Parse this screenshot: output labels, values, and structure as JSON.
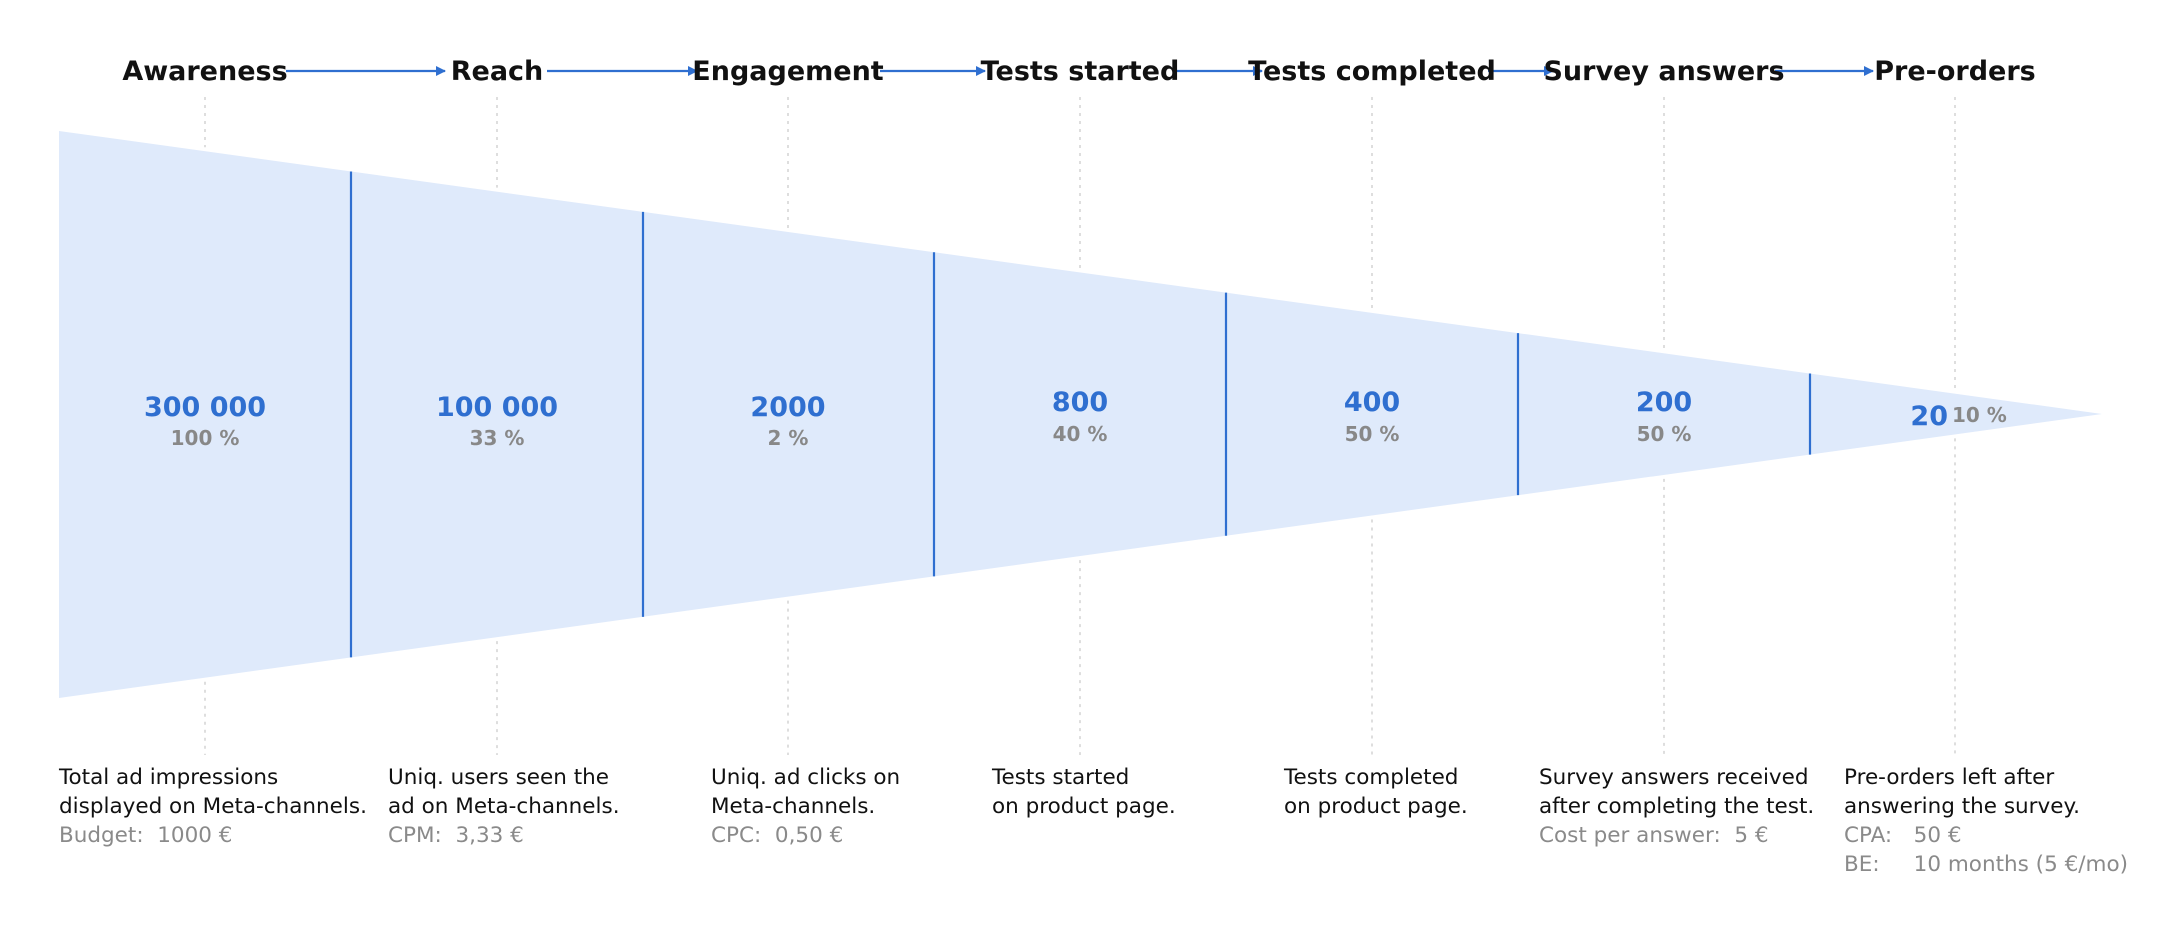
{
  "colors": {
    "accent": "#2f6fd0",
    "funnel_fill": "#dfeafb",
    "text": "#111111",
    "muted": "#8a8a8a",
    "guide": "#cfcfcf"
  },
  "stages": [
    {
      "title": "Awareness",
      "value": "300 000",
      "percent": "100 %"
    },
    {
      "title": "Reach",
      "value": "100 000",
      "percent": "33 %"
    },
    {
      "title": "Engagement",
      "value": "2000",
      "percent": "2 %"
    },
    {
      "title": "Tests started",
      "value": "800",
      "percent": "40 %"
    },
    {
      "title": "Tests completed",
      "value": "400",
      "percent": "50 %"
    },
    {
      "title": "Survey answers",
      "value": "200",
      "percent": "50 %"
    },
    {
      "title": "Pre-orders",
      "value": "20",
      "percent": "10 %"
    }
  ],
  "descriptions": [
    {
      "lines": [
        "Total ad impressions",
        "displayed on Meta-channels."
      ],
      "meta": [
        {
          "key": "Budget:",
          "value": "1000 €"
        }
      ]
    },
    {
      "lines": [
        "Uniq. users seen the",
        "ad on Meta-channels."
      ],
      "meta": [
        {
          "key": "CPM:",
          "value": "3,33 €"
        }
      ]
    },
    {
      "lines": [
        "Uniq. ad clicks on",
        "Meta-channels."
      ],
      "meta": [
        {
          "key": "CPC:",
          "value": "0,50 €"
        }
      ]
    },
    {
      "lines": [
        "Tests started",
        "on product page."
      ],
      "meta": []
    },
    {
      "lines": [
        "Tests completed",
        "on product page."
      ],
      "meta": []
    },
    {
      "lines": [
        "Survey answers received",
        "after completing the test."
      ],
      "meta": [
        {
          "key": "Cost per answer:",
          "value": "5 €"
        }
      ]
    },
    {
      "lines": [
        "Pre-orders left after",
        "answering the survey."
      ],
      "meta": [
        {
          "key": "CPA:",
          "value": "50 €"
        },
        {
          "key": "BE:",
          "value": "10 months (5 €/mo)"
        }
      ]
    }
  ]
}
